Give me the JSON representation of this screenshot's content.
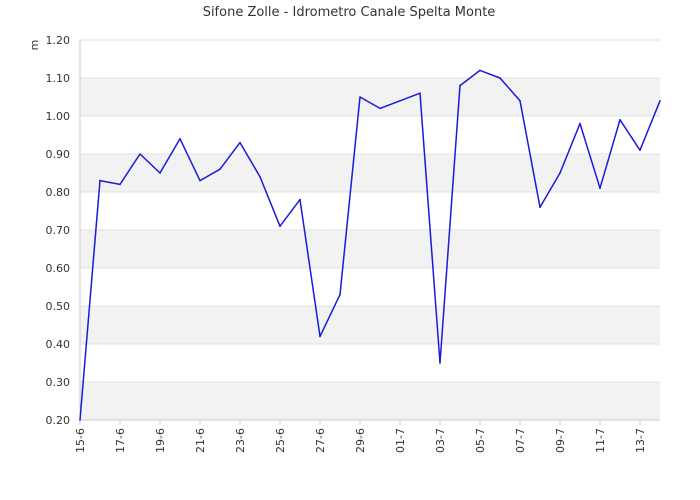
{
  "chart_data": {
    "type": "line",
    "title": "Sifone Zolle - Idrometro Canale Spelta Monte",
    "xlabel": "",
    "ylabel": "m",
    "ylim": [
      0.2,
      1.2
    ],
    "grid": true,
    "yticks": [
      "0.20",
      "0.30",
      "0.40",
      "0.50",
      "0.60",
      "0.70",
      "0.80",
      "0.90",
      "1.00",
      "1.10",
      "1.20"
    ],
    "xticks": [
      "15-6",
      "17-6",
      "19-6",
      "21-6",
      "23-6",
      "25-6",
      "27-6",
      "29-6",
      "01-7",
      "03-7",
      "05-7",
      "07-7",
      "09-7",
      "11-7",
      "13-7"
    ],
    "series": [
      {
        "name": "",
        "color": "#1a1adc",
        "x": [
          "15-6",
          "16-6",
          "17-6",
          "18-6",
          "19-6",
          "20-6",
          "21-6",
          "22-6",
          "23-6",
          "24-6",
          "25-6",
          "26-6",
          "27-6",
          "28-6",
          "29-6",
          "30-6",
          "01-7",
          "02-7",
          "03-7",
          "04-7",
          "05-7",
          "06-7",
          "07-7",
          "08-7",
          "09-7",
          "10-7",
          "11-7",
          "12-7",
          "13-7",
          "14-7"
        ],
        "values": [
          0.2,
          0.83,
          0.82,
          0.9,
          0.85,
          0.94,
          0.83,
          0.86,
          0.93,
          0.84,
          0.71,
          0.78,
          0.42,
          0.53,
          1.05,
          1.02,
          1.04,
          1.06,
          0.35,
          1.08,
          1.12,
          1.1,
          1.04,
          0.76,
          0.85,
          0.98,
          0.81,
          0.99,
          0.91,
          1.04
        ]
      }
    ]
  }
}
